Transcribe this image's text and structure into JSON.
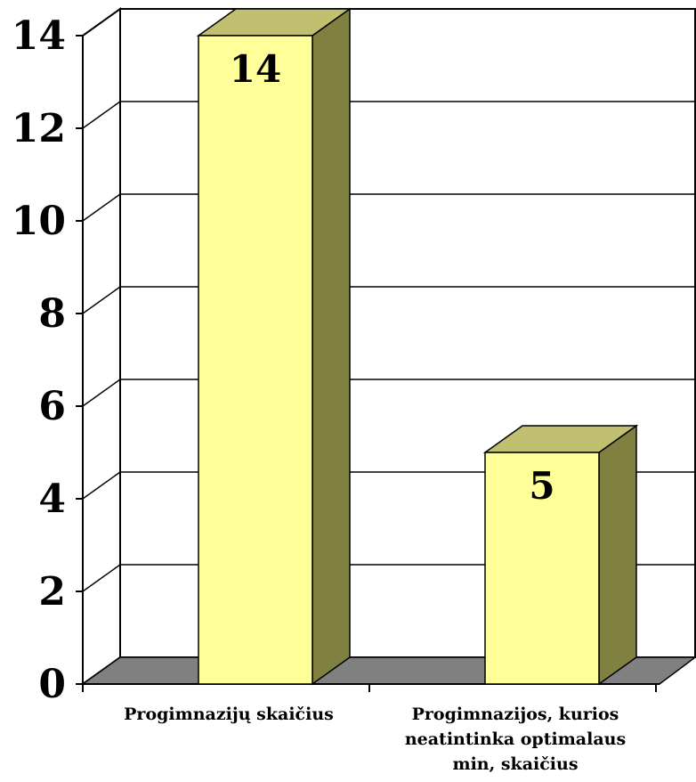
{
  "chart_data": {
    "type": "bar",
    "title": "",
    "xlabel": "",
    "ylabel": "",
    "categories": [
      [
        "Progimnazijų skaičius"
      ],
      [
        "Progimnazijos, kurios",
        "neatintinka optimalaus",
        "min, skaičius"
      ]
    ],
    "values": [
      14,
      5
    ],
    "ylim": [
      0,
      14
    ],
    "y_ticks": [
      "0",
      "2",
      "4",
      "6",
      "8",
      "10",
      "12",
      "14"
    ],
    "data_labels": [
      "14",
      "5"
    ],
    "grid": true,
    "three_d": true,
    "legend": "none",
    "colors": {
      "bar_front": "#FFFF99",
      "bar_top": "#C0C070",
      "bar_side": "#808040",
      "floor": "#808080",
      "grid": "#000000"
    }
  }
}
